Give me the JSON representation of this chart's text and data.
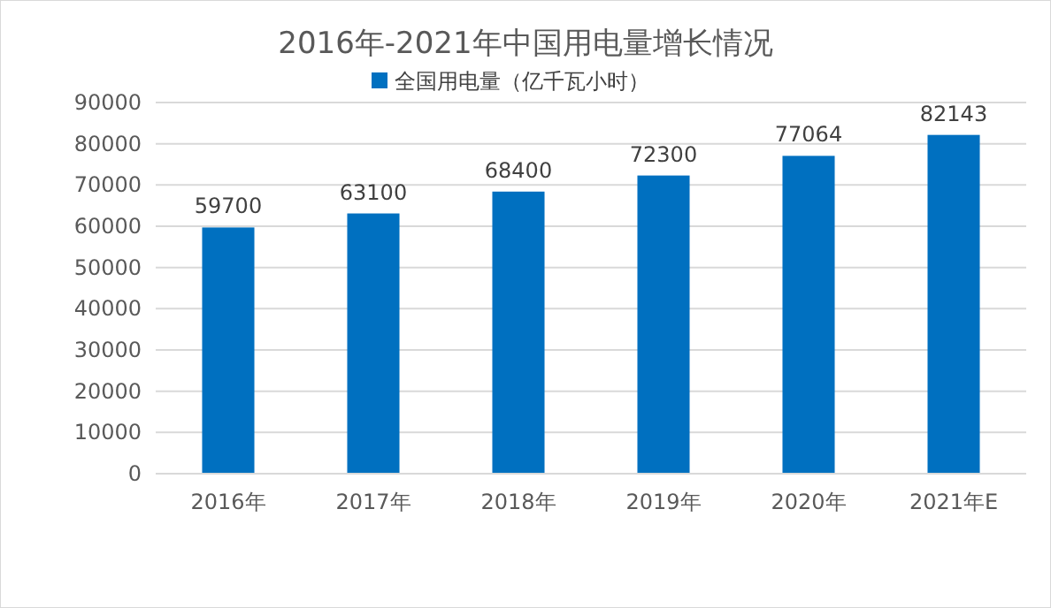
{
  "chart_data": {
    "type": "bar",
    "title": "2016年-2021年中国用电量增长情况",
    "categories": [
      "2016年",
      "2017年",
      "2018年",
      "2019年",
      "2020年",
      "2021年E"
    ],
    "series": [
      {
        "name": "全国用电量（亿千瓦小时）",
        "color": "#0070c0",
        "values": [
          59700,
          63100,
          68400,
          72300,
          77064,
          82143
        ]
      }
    ],
    "ylim": [
      0,
      90000
    ],
    "yticks": [
      0,
      10000,
      20000,
      30000,
      40000,
      50000,
      60000,
      70000,
      80000,
      90000
    ],
    "grid": "y",
    "legend": "top",
    "data_labels": true
  }
}
